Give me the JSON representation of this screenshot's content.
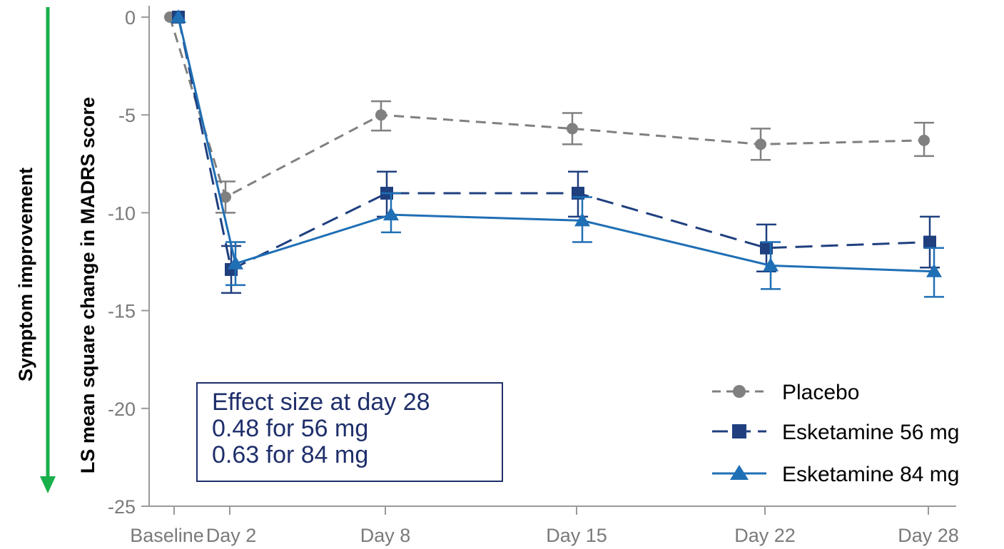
{
  "chart_data": {
    "type": "line",
    "categories": [
      "Baseline",
      "Day 2",
      "Day 8",
      "Day 15",
      "Day 22",
      "Day 28"
    ],
    "ylabel": "LS mean square change in MADRS score",
    "side_label": "Symptom improvement",
    "ylim": [
      -25,
      0
    ],
    "yticks": [
      0,
      -5,
      -10,
      -15,
      -20,
      -25
    ],
    "grid": false,
    "legend_position": "bottom-right",
    "series": [
      {
        "name": "Placebo",
        "color": "#808080",
        "marker": "circle",
        "dash": "dashed",
        "values": [
          0,
          -9.2,
          -5.0,
          -5.7,
          -6.5,
          -6.3
        ],
        "error_low": [
          0,
          -10.0,
          -5.8,
          -6.5,
          -7.3,
          -7.1
        ],
        "error_high": [
          0,
          -8.4,
          -4.3,
          -4.9,
          -5.7,
          -5.4
        ]
      },
      {
        "name": "Esketamine 56 mg",
        "color": "#1f3f7f",
        "marker": "square",
        "dash": "dashed",
        "values": [
          0,
          -12.9,
          -9.0,
          -9.0,
          -11.8,
          -11.5
        ],
        "error_low": [
          0,
          -14.1,
          -10.2,
          -10.2,
          -13.0,
          -12.8
        ],
        "error_high": [
          0,
          -11.7,
          -7.9,
          -7.9,
          -10.6,
          -10.2
        ]
      },
      {
        "name": "Esketamine 84 mg",
        "color": "#1f6fb5",
        "marker": "triangle",
        "dash": "solid",
        "values": [
          0,
          -12.6,
          -10.1,
          -10.4,
          -12.7,
          -13.0
        ],
        "error_low": [
          0,
          -13.7,
          -11.0,
          -11.5,
          -13.9,
          -14.3
        ],
        "error_high": [
          0,
          -11.5,
          -9.0,
          -9.2,
          -11.5,
          -11.8
        ]
      }
    ],
    "annotation": {
      "line1": "Effect size at day 28",
      "line2": "0.48 for 56 mg",
      "line3": "0.63 for 84 mg"
    }
  }
}
